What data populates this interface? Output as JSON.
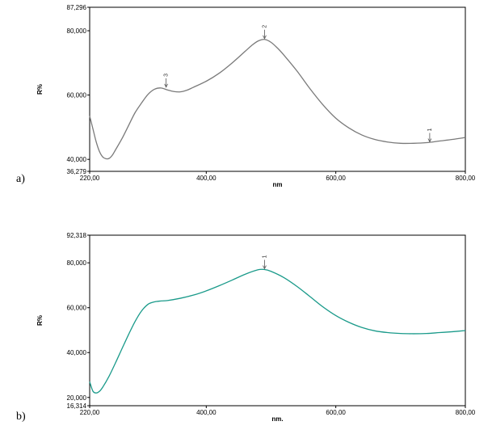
{
  "panels": {
    "a": {
      "label": "a)"
    },
    "b": {
      "label": "b)"
    }
  },
  "chart_data": [
    {
      "type": "line",
      "panel": "a)",
      "xlabel": "nm",
      "ylabel": "R%",
      "xlim": [
        220,
        800
      ],
      "ylim": [
        36.279,
        87.296
      ],
      "x_ticks": [
        220,
        400,
        600,
        800
      ],
      "x_tick_labels": [
        "220,00",
        "400,00",
        "600,00",
        "800,00"
      ],
      "y_ticks": [
        36.279,
        40,
        60,
        80,
        87.296
      ],
      "y_tick_labels": [
        "36,279",
        "40,000",
        "60,000",
        "80,000",
        "87,296"
      ],
      "color": "#7a7a7a",
      "series": [
        {
          "x": [
            220,
            225,
            230,
            235,
            240,
            245,
            250,
            255,
            260,
            270,
            280,
            290,
            300,
            310,
            320,
            330,
            340,
            350,
            360,
            370,
            380,
            400,
            420,
            440,
            460,
            470,
            480,
            490,
            500,
            510,
            520,
            540,
            560,
            580,
            600,
            620,
            640,
            660,
            680,
            700,
            720,
            740,
            760,
            780,
            800
          ],
          "y": [
            53.5,
            49.5,
            45.5,
            42.5,
            40.8,
            40.2,
            40.3,
            41.3,
            43.0,
            46.5,
            50.5,
            54.5,
            57.5,
            60.2,
            61.8,
            62.2,
            61.6,
            61.1,
            61.0,
            61.5,
            62.4,
            64.3,
            66.8,
            70.0,
            73.6,
            75.4,
            76.8,
            77.3,
            76.4,
            74.6,
            72.4,
            67.5,
            62.0,
            57.0,
            52.8,
            49.8,
            47.6,
            46.2,
            45.4,
            45.0,
            45.0,
            45.2,
            45.7,
            46.2,
            46.8
          ]
        }
      ],
      "peaks": [
        {
          "label": "1",
          "x": 745,
          "y": 45.2
        },
        {
          "label": "2",
          "x": 490,
          "y": 77.3
        },
        {
          "label": "3",
          "x": 338,
          "y": 62.2
        }
      ]
    },
    {
      "type": "line",
      "panel": "b)",
      "xlabel": "nm.",
      "ylabel": "R%",
      "xlim": [
        220,
        800
      ],
      "ylim": [
        16.314,
        92.318
      ],
      "x_ticks": [
        220,
        400,
        600,
        800
      ],
      "x_tick_labels": [
        "220,00",
        "400,00",
        "600,00",
        "800,00"
      ],
      "y_ticks": [
        16.314,
        20,
        40,
        60,
        80,
        92.318
      ],
      "y_tick_labels": [
        "16,314",
        "20,000",
        "40,000",
        "60,000",
        "80,000",
        "92,318"
      ],
      "color": "#1a9a8a",
      "series": [
        {
          "x": [
            220,
            225,
            230,
            235,
            240,
            250,
            260,
            270,
            280,
            290,
            300,
            310,
            320,
            330,
            340,
            360,
            380,
            400,
            420,
            440,
            460,
            480,
            490,
            500,
            520,
            540,
            560,
            580,
            600,
            620,
            640,
            660,
            680,
            700,
            720,
            740,
            760,
            780,
            800
          ],
          "y": [
            27.0,
            22.8,
            22.0,
            22.7,
            24.5,
            29.5,
            35.5,
            41.8,
            48.0,
            53.8,
            58.5,
            61.5,
            62.6,
            63.0,
            63.2,
            64.2,
            65.6,
            67.5,
            69.8,
            72.3,
            74.9,
            76.9,
            77.0,
            76.2,
            73.4,
            69.5,
            65.0,
            60.4,
            56.5,
            53.5,
            51.2,
            49.7,
            48.9,
            48.5,
            48.4,
            48.5,
            48.9,
            49.3,
            49.8
          ]
        }
      ],
      "peaks": [
        {
          "label": "1",
          "x": 490,
          "y": 77.0
        }
      ]
    }
  ]
}
